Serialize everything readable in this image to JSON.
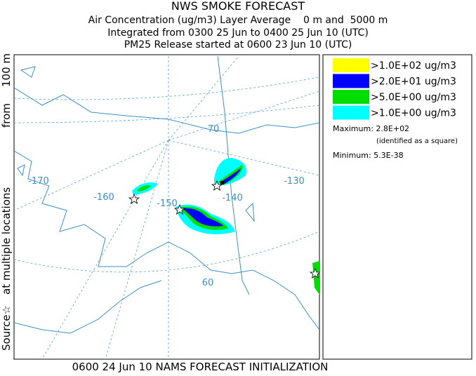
{
  "header": {
    "title": "NWS SMOKE FORECAST",
    "lines": [
      "Air Concentration (ug/m3) Layer Average    0 m and  5000 m",
      "Integrated from 0300 25 Jun to 0400 25 Jun 10 (UTC)",
      "PM25 Release started at 0600 23 Jun 10 (UTC)"
    ]
  },
  "legend": {
    "items": [
      {
        "label": ">1.0E+02 ug/m3",
        "color": "#ffff00"
      },
      {
        "label": ">2.0E+01 ug/m3",
        "color": "#0000ff"
      },
      {
        "label": ">5.0E+00 ug/m3",
        "color": "#00dd00"
      },
      {
        "label": ">1.0E+00 ug/m3",
        "color": "#00ffff"
      }
    ],
    "maximum": "Maximum: 2.8E+02",
    "identified": "(identified as a square)",
    "minimum": "Minimum: 5.3E-38"
  },
  "map": {
    "labels": [
      "-170",
      "-160",
      "-150",
      "-140",
      "-130",
      "70",
      "60"
    ]
  },
  "side_label": [
    "Source☆",
    "at multiple locations",
    "from",
    "100 m"
  ],
  "footer": "0600 24 Jun 10 NAMS FORECAST INITIALIZATION"
}
